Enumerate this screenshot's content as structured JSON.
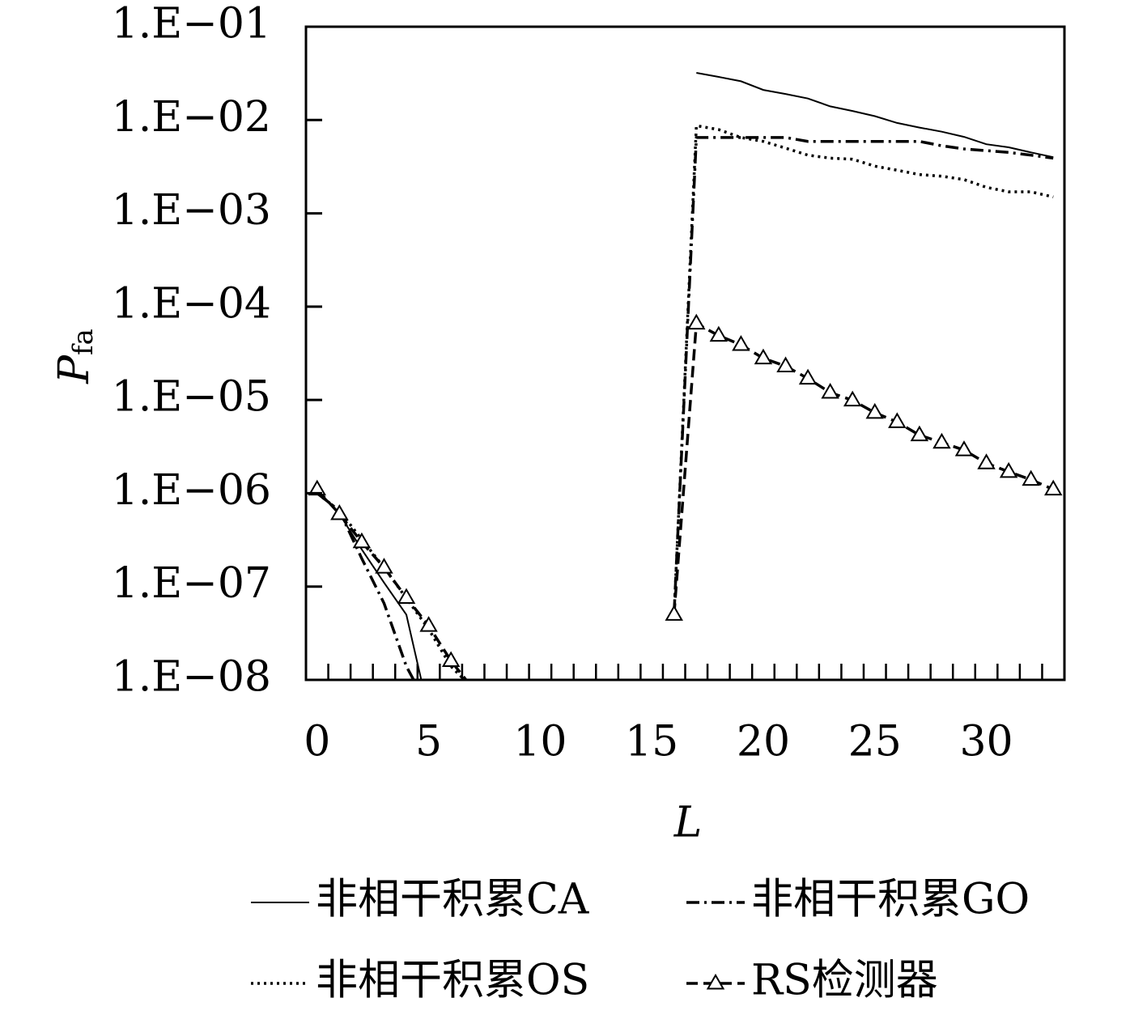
{
  "chart_data": {
    "type": "line",
    "x_label": "L",
    "y_label": {
      "main": "P",
      "sub": "fa"
    },
    "x": [
      0,
      1,
      2,
      3,
      4,
      5,
      6,
      7,
      8,
      9,
      10,
      11,
      12,
      13,
      14,
      15,
      16,
      17,
      18,
      19,
      20,
      21,
      22,
      23,
      24,
      25,
      26,
      27,
      28,
      29,
      30,
      31,
      32,
      33
    ],
    "xlim": [
      -0.5,
      33.5
    ],
    "xticks": [
      0,
      5,
      10,
      15,
      20,
      25,
      30
    ],
    "ylim": [
      1e-08,
      0.1
    ],
    "log_y": true,
    "yticks": [
      {
        "value": 1e-08,
        "label": "1.E−08"
      },
      {
        "value": 1e-07,
        "label": "1.E−07"
      },
      {
        "value": 1e-06,
        "label": "1.E−06"
      },
      {
        "value": 1e-05,
        "label": "1.E−05"
      },
      {
        "value": 0.0001,
        "label": "1.E−04"
      },
      {
        "value": 0.001,
        "label": "1.E−03"
      },
      {
        "value": 0.01,
        "label": "1.E−02"
      },
      {
        "value": 0.1,
        "label": "1.E−01"
      }
    ],
    "grid": false,
    "legend": "bottom",
    "series": [
      {
        "name": "非相干积累CA",
        "color": "#000000",
        "dash": "solid",
        "marker": "none",
        "values": [
          1.1e-06,
          6e-07,
          2.5e-07,
          1.1e-07,
          5e-08,
          4.5e-09,
          null,
          null,
          null,
          null,
          null,
          null,
          null,
          null,
          null,
          null,
          null,
          0.032,
          0.029,
          0.026,
          0.021,
          0.019,
          0.017,
          0.014,
          0.0125,
          0.011,
          0.0093,
          0.0083,
          0.0075,
          0.0066,
          0.0055,
          0.0051,
          0.0045,
          0.004
        ]
      },
      {
        "name": "非相干积累GO",
        "color": "#000000",
        "dash": "dashdot",
        "marker": "none",
        "values": [
          1e-06,
          6.5e-07,
          2e-07,
          6.6e-08,
          1.4e-08,
          5e-09,
          null,
          null,
          null,
          null,
          null,
          null,
          null,
          null,
          null,
          null,
          5e-08,
          0.0065,
          0.0065,
          0.0065,
          0.0065,
          0.0065,
          0.0059,
          0.0059,
          0.0059,
          0.0059,
          0.0059,
          0.0059,
          0.0053,
          0.0049,
          0.0047,
          0.0045,
          0.0042,
          0.0039
        ]
      },
      {
        "name": "非相干积累OS",
        "color": "#000000",
        "dash": "dotted",
        "marker": "none",
        "values": [
          1e-06,
          6.5e-07,
          3.2e-07,
          1.6e-07,
          7.5e-08,
          3.5e-08,
          1.4e-08,
          8e-09,
          null,
          null,
          null,
          null,
          null,
          null,
          null,
          null,
          5e-08,
          0.0087,
          0.0079,
          0.0065,
          0.0059,
          0.005,
          0.0042,
          0.0039,
          0.0038,
          0.0032,
          0.0029,
          0.0026,
          0.0025,
          0.0023,
          0.0019,
          0.0017,
          0.0017,
          0.0015
        ]
      },
      {
        "name": "RS检测器",
        "color": "#000000",
        "dash": "dashed",
        "marker": "triangle",
        "values": [
          1.1e-06,
          6e-07,
          3e-07,
          1.6e-07,
          7.6e-08,
          3.8e-08,
          1.6e-08,
          8e-09,
          null,
          null,
          null,
          null,
          null,
          null,
          null,
          null,
          5e-08,
          6.6e-05,
          4.9e-05,
          3.9e-05,
          2.8e-05,
          2.3e-05,
          1.7e-05,
          1.2e-05,
          9.9e-06,
          7.3e-06,
          5.8e-06,
          4.2e-06,
          3.5e-06,
          2.9e-06,
          2.1e-06,
          1.7e-06,
          1.4e-06,
          1.1e-06
        ]
      }
    ]
  }
}
